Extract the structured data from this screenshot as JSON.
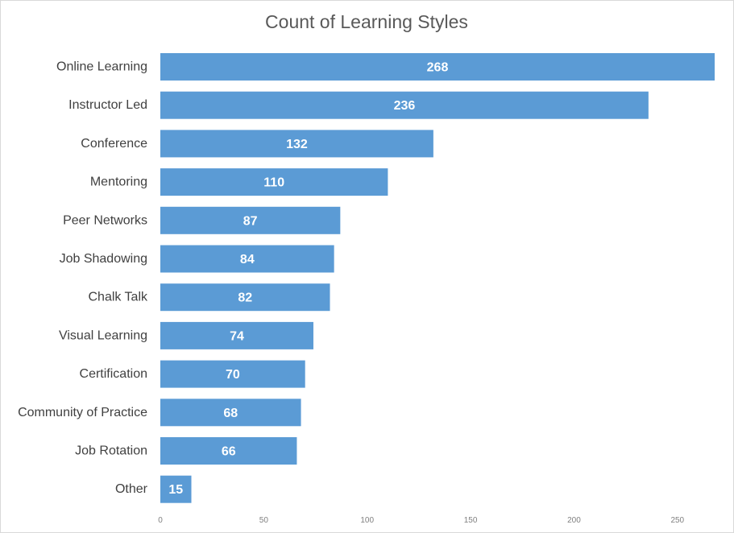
{
  "chart_data": {
    "type": "bar",
    "orientation": "horizontal",
    "title": "Count of Learning Styles",
    "xlabel": "",
    "ylabel": "",
    "categories": [
      "Online Learning",
      "Instructor Led",
      "Conference",
      "Mentoring",
      "Peer Networks",
      "Job Shadowing",
      "Chalk Talk",
      "Visual Learning",
      "Certification",
      "Community of Practice",
      "Job Rotation",
      "Other"
    ],
    "values": [
      268,
      236,
      132,
      110,
      87,
      84,
      82,
      74,
      70,
      68,
      66,
      15
    ],
    "xlim": [
      0,
      268
    ],
    "xticks": [
      0,
      50,
      100,
      150,
      200,
      250
    ],
    "data_labels": true,
    "grid": false,
    "legend": "none",
    "bar_color": "#5b9bd5"
  }
}
